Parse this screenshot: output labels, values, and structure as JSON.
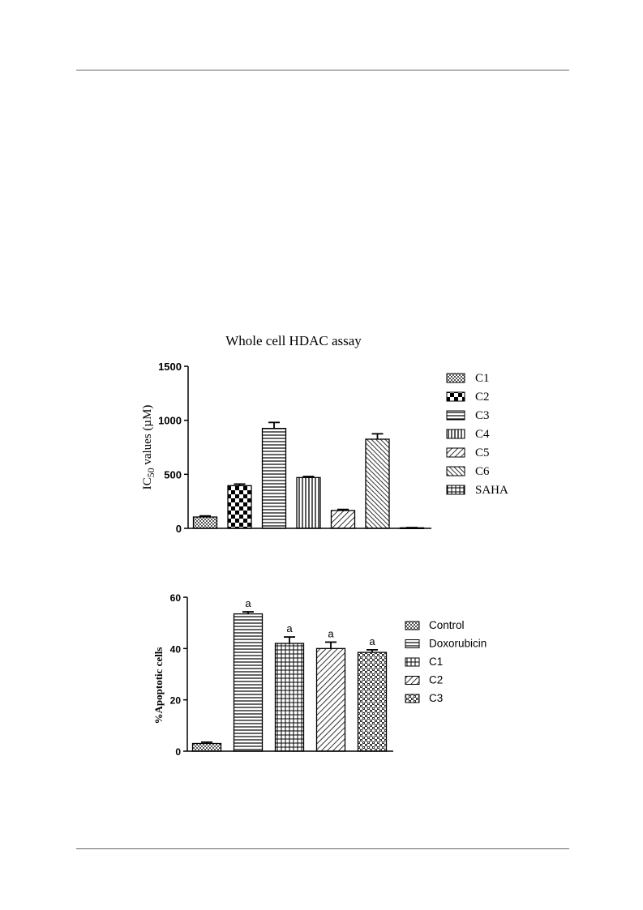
{
  "chart_data": [
    {
      "type": "bar",
      "title": "Whole cell HDAC assay",
      "ylabel": {
        "prefix": "IC",
        "sub": "50",
        "suffix": " values (µM)"
      },
      "xlabel": "",
      "ylim": [
        0,
        1500
      ],
      "yticks": [
        0,
        500,
        1000,
        1500
      ],
      "ytick_labels": [
        "0",
        "500",
        "1000",
        "1500"
      ],
      "legend_position": "right",
      "categories": [
        "C1",
        "C2",
        "C3",
        "C4",
        "C5",
        "C6",
        "SAHA"
      ],
      "values": [
        105,
        395,
        925,
        470,
        165,
        825,
        5
      ],
      "errors": [
        10,
        15,
        55,
        10,
        10,
        50,
        2
      ],
      "patterns": [
        "fine-check",
        "big-check",
        "hlines",
        "vlines",
        "diag-right",
        "diag-left",
        "grid-cross"
      ]
    },
    {
      "type": "bar",
      "title": "",
      "ylabel": "%Apoptotic cells",
      "xlabel": "",
      "ylim": [
        0,
        60
      ],
      "yticks": [
        0,
        20,
        40,
        60
      ],
      "ytick_labels": [
        "0",
        "20",
        "40",
        "60"
      ],
      "legend_position": "right",
      "categories": [
        "Control",
        "Doxorubicin",
        "C1",
        "C2",
        "C3"
      ],
      "values": [
        3,
        53.5,
        42,
        40,
        38.5
      ],
      "errors": [
        0.5,
        0.8,
        2.5,
        2.5,
        1.0
      ],
      "annotations": [
        "",
        "a",
        "a",
        "a",
        "a"
      ],
      "patterns": [
        "fine-check",
        "hlines",
        "grid-cross",
        "diag-right",
        "brick"
      ]
    }
  ]
}
